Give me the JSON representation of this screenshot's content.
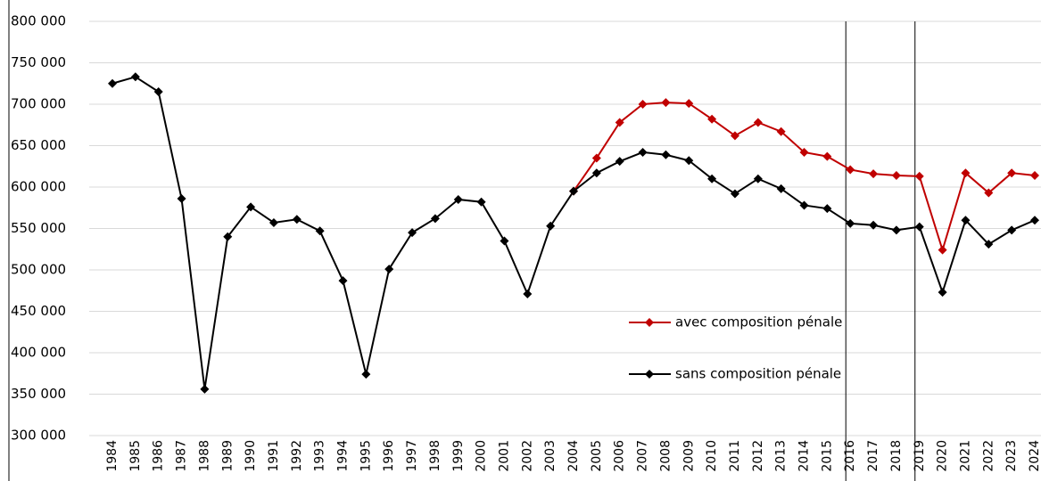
{
  "chart_data": {
    "type": "line",
    "categories": [
      "1984",
      "1985",
      "1986",
      "1987",
      "1988",
      "1989",
      "1990",
      "1991",
      "1992",
      "1993",
      "1994",
      "1995",
      "1996",
      "1997",
      "1998",
      "1999",
      "2000",
      "2001",
      "2002",
      "2003",
      "2004",
      "2005",
      "2006",
      "2007",
      "2008",
      "2009",
      "2010",
      "2011",
      "2012",
      "2013",
      "2014",
      "2015",
      "2016",
      "2017",
      "2018",
      "2019",
      "2020",
      "2021",
      "2022",
      "2023",
      "2024"
    ],
    "series": [
      {
        "name": "avec composition pénale",
        "color": "#c00000",
        "values": [
          null,
          null,
          null,
          null,
          null,
          null,
          null,
          null,
          null,
          null,
          null,
          null,
          null,
          null,
          null,
          null,
          null,
          null,
          null,
          null,
          595000,
          635000,
          678000,
          700000,
          702000,
          701000,
          682000,
          662000,
          678000,
          667000,
          642000,
          637000,
          621000,
          616000,
          614000,
          613000,
          524000,
          617000,
          593000,
          617000,
          614000
        ]
      },
      {
        "name": "sans composition pénale",
        "color": "#000000",
        "values": [
          725000,
          733000,
          715000,
          586000,
          356000,
          540000,
          576000,
          557000,
          561000,
          547000,
          487000,
          374000,
          501000,
          545000,
          562000,
          585000,
          582000,
          535000,
          471000,
          553000,
          595000,
          617000,
          631000,
          642000,
          639000,
          632000,
          610000,
          592000,
          610000,
          598000,
          578000,
          574000,
          556000,
          554000,
          548000,
          552000,
          473000,
          560000,
          531000,
          548000,
          560000
        ]
      }
    ],
    "ylim": [
      300000,
      800000
    ],
    "yticks": [
      {
        "value": 300000,
        "label": "300 000"
      },
      {
        "value": 350000,
        "label": "350 000"
      },
      {
        "value": 400000,
        "label": "400 000"
      },
      {
        "value": 450000,
        "label": "450 000"
      },
      {
        "value": 500000,
        "label": "500 000"
      },
      {
        "value": 550000,
        "label": "550 000"
      },
      {
        "value": 600000,
        "label": "600 000"
      },
      {
        "value": 650000,
        "label": "650 000"
      },
      {
        "value": 700000,
        "label": "700 000"
      },
      {
        "value": 750000,
        "label": "750 000"
      },
      {
        "value": 800000,
        "label": "800 000"
      }
    ],
    "grid": true,
    "reference_lines_x": [
      "2016",
      "2019"
    ]
  }
}
